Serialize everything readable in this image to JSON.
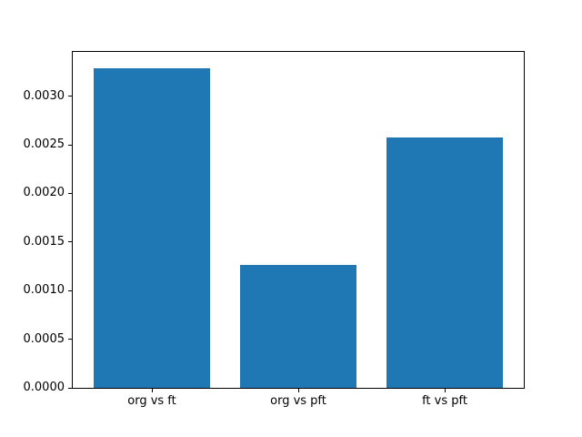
{
  "chart_data": {
    "type": "bar",
    "categories": [
      "org vs ft",
      "org vs pft",
      "ft vs pft"
    ],
    "values": [
      0.00329,
      0.00126,
      0.00258
    ],
    "title": "",
    "xlabel": "",
    "ylabel": "",
    "ylim": [
      0,
      0.003455
    ],
    "ytick_labels": [
      "0.0000",
      "0.0005",
      "0.0010",
      "0.0015",
      "0.0020",
      "0.0025",
      "0.0030"
    ],
    "bar_color": "#1f77b4",
    "bar_width_fraction": 0.8,
    "grid": false,
    "legend_position": "none"
  }
}
